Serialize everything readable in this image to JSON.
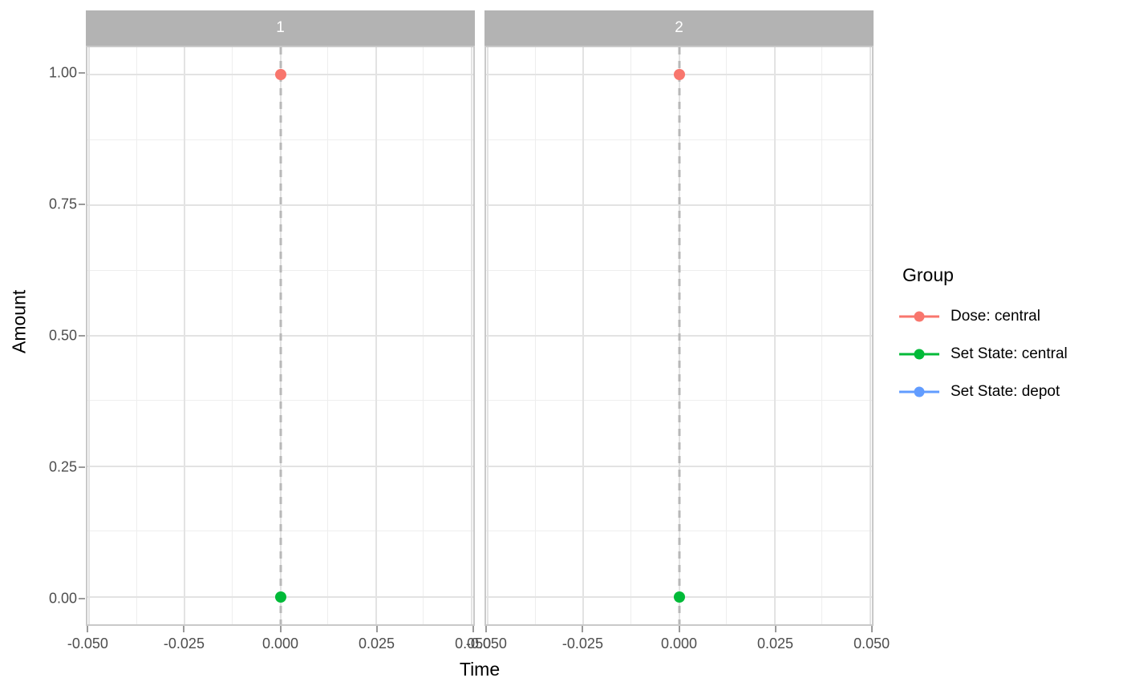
{
  "chart_data": {
    "type": "scatter",
    "title": "",
    "xlabel": "Time",
    "ylabel": "Amount",
    "facets": [
      "1",
      "2"
    ],
    "x_ticks": {
      "values": [
        -0.05,
        -0.025,
        0,
        0.025,
        0.05
      ],
      "labels": [
        "-0.050",
        "-0.025",
        "0.000",
        "0.025",
        "0.050"
      ]
    },
    "y_ticks": {
      "values": [
        0,
        0.25,
        0.5,
        0.75,
        1
      ],
      "labels": [
        "0.00",
        "0.25",
        "0.50",
        "0.75",
        "1.00"
      ]
    },
    "xlim": [
      -0.0505,
      0.0505
    ],
    "ylim": [
      -0.0525,
      1.0525
    ],
    "grid": true,
    "legend": {
      "title": "Group",
      "position": "right"
    },
    "reference_lines": [
      {
        "facet": "1",
        "orientation": "vertical",
        "x": 0,
        "style": "dashed"
      },
      {
        "facet": "2",
        "orientation": "vertical",
        "x": 0,
        "style": "dashed"
      }
    ],
    "series": [
      {
        "name": "Dose: central",
        "color": "#F8766D",
        "points": [
          {
            "facet": "1",
            "x": 0,
            "y": 1.0
          },
          {
            "facet": "2",
            "x": 0,
            "y": 1.0
          }
        ]
      },
      {
        "name": "Set State: central",
        "color": "#00BA38",
        "points": [
          {
            "facet": "1",
            "x": 0,
            "y": 0.0
          },
          {
            "facet": "2",
            "x": 0,
            "y": 0.0
          }
        ]
      },
      {
        "name": "Set State: depot",
        "color": "#619CFF",
        "points": []
      }
    ],
    "style": {
      "strip_fill": "#b3b3b3",
      "strip_text": "#ffffff",
      "grid_major": "#e3e3e3",
      "grid_minor": "#eeeeee",
      "panel_border": "#c9c9c9",
      "axis_text_color": "#4d4d4d",
      "tick_color": "#9a9a9a",
      "ref_line_color": "#b8b8b8",
      "background": "#ffffff"
    }
  }
}
